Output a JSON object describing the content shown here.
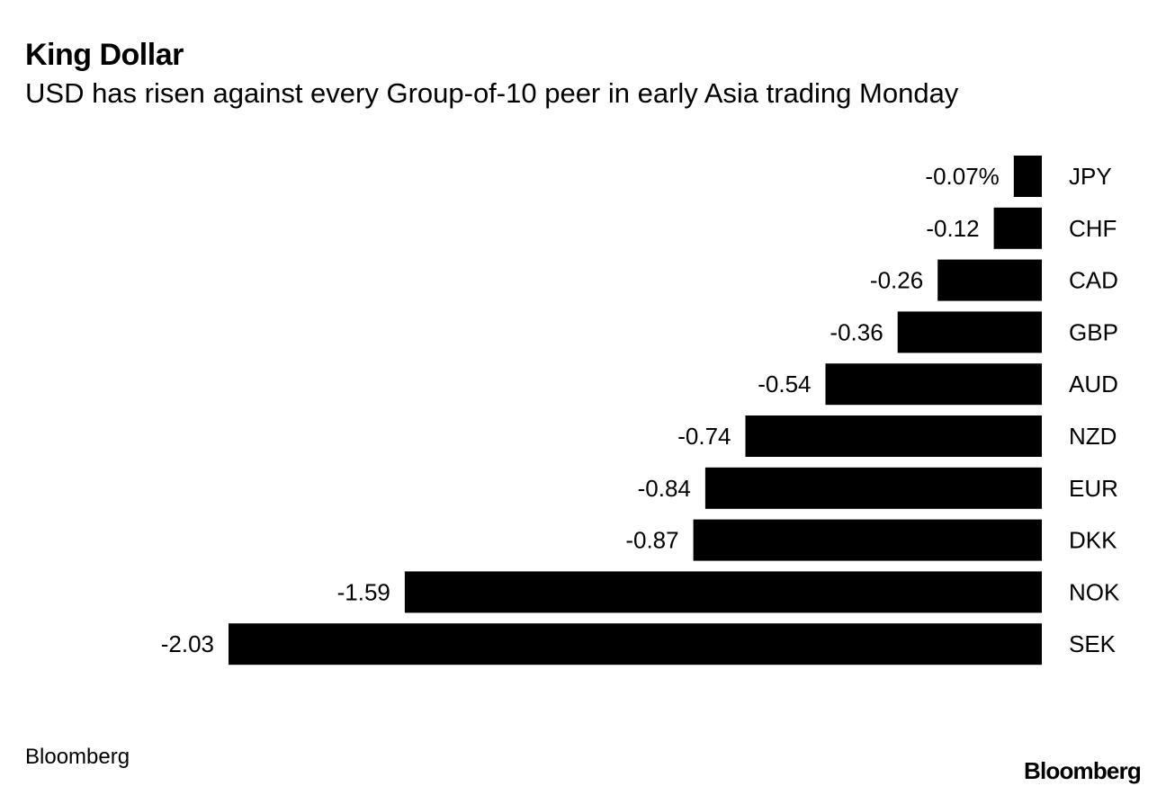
{
  "header": {
    "title": "King Dollar",
    "subtitle": "USD has risen against every Group-of-10 peer in early Asia trading Monday"
  },
  "footer": {
    "source": "Bloomberg",
    "logo": "Bloomberg"
  },
  "chart_data": {
    "type": "bar",
    "orientation": "horizontal",
    "title": "King Dollar",
    "subtitle": "USD has risen against every Group-of-10 peer in early Asia trading Monday",
    "categories": [
      "JPY",
      "CHF",
      "CAD",
      "GBP",
      "AUD",
      "NZD",
      "EUR",
      "DKK",
      "NOK",
      "SEK"
    ],
    "values": [
      -0.07,
      -0.12,
      -0.26,
      -0.36,
      -0.54,
      -0.74,
      -0.84,
      -0.87,
      -1.59,
      -2.03
    ],
    "value_labels": [
      "-0.07%",
      "-0.12",
      "-0.26",
      "-0.36",
      "-0.54",
      "-0.74",
      "-0.84",
      "-0.87",
      "-1.59",
      "-2.03"
    ],
    "xlim": [
      -2.03,
      0
    ],
    "bar_color": "#000000",
    "grid": false,
    "legend": "none",
    "xlabel": "",
    "ylabel": ""
  }
}
